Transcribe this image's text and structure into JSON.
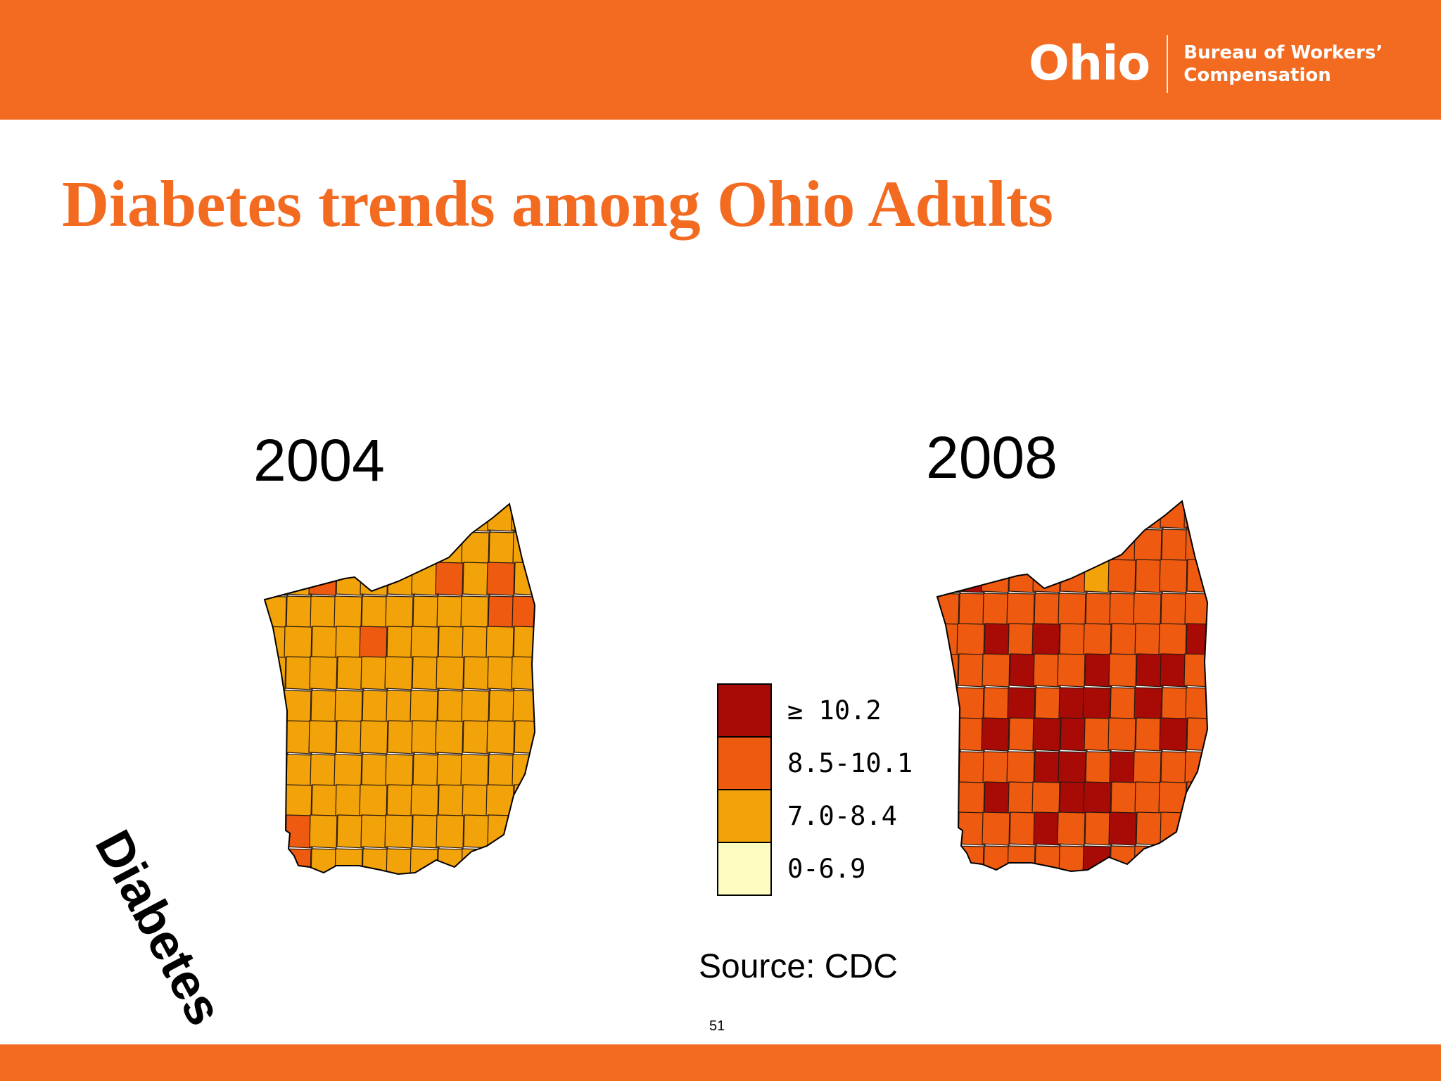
{
  "header": {
    "logo_word": "Ohio",
    "logo_sub_line1": "Bureau of Workers’",
    "logo_sub_line2": "Compensation",
    "bar_color": "#f26b21"
  },
  "slide": {
    "title": "Diabetes trends among Ohio Adults",
    "vertical_label": "Diabetes",
    "source": "Source: CDC",
    "page_number": "51"
  },
  "maps": [
    {
      "year": "2004",
      "dominant_class": "7.0-8.4",
      "highlight_class": "8.5-10.1"
    },
    {
      "year": "2008",
      "dominant_class": "8.5-10.1",
      "highlight_class": "≥ 10.2",
      "accent_class": "7.0-8.4"
    }
  ],
  "legend": {
    "classes": [
      {
        "label": "≥ 10.2",
        "color": "#a80a06"
      },
      {
        "label": "8.5-10.1",
        "color": "#ef5a11"
      },
      {
        "label": "7.0-8.4",
        "color": "#f3a30a"
      },
      {
        "label": "0-6.9",
        "color": "#fffcc2"
      }
    ]
  }
}
